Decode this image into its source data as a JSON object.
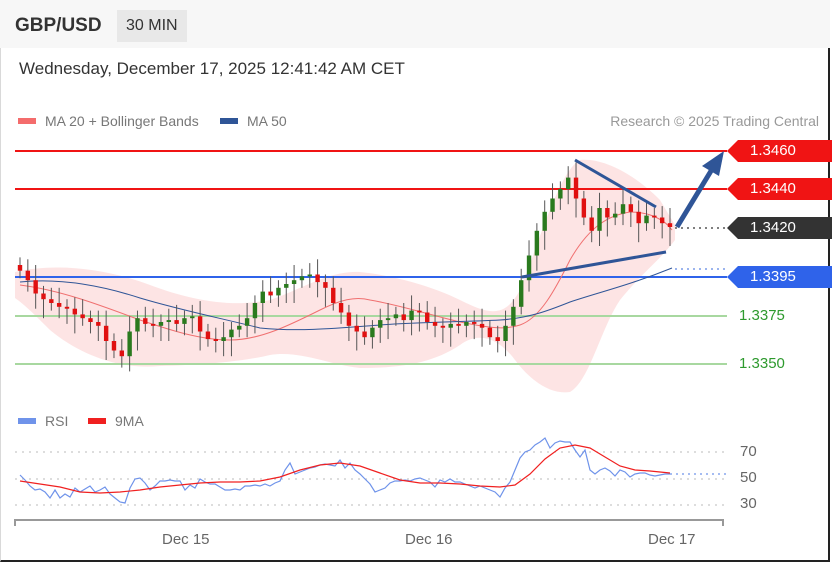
{
  "header": {
    "pair": "GBP/USD",
    "timeframe": "30 MIN",
    "datetime": "Wednesday, December 17, 2025 12:41:42 AM CET"
  },
  "legend": {
    "bollinger": "MA 20 + Bollinger Bands",
    "ma50": "MA 50",
    "credit": "Research © 2025 Trading Central"
  },
  "price_levels": {
    "r2": "1.3460",
    "r1": "1.3440",
    "current": "1.3420",
    "pivot": "1.3395",
    "s1": "1.3375",
    "s2": "1.3350"
  },
  "rsi_legend": {
    "rsi": "RSI",
    "ma": "9MA"
  },
  "rsi_axis": [
    "70",
    "50",
    "30"
  ],
  "x_axis": [
    "Dec 15",
    "Dec 16",
    "Dec 17"
  ],
  "colors": {
    "resistance": "#f01414",
    "current": "#333333",
    "pivot": "#2f63ea",
    "support": "#2e9a2e",
    "bull": "#2a7a1e",
    "bear": "#e01010",
    "ma50": "#2f5597",
    "bb": "#f7a6a6"
  },
  "chart_data": [
    {
      "type": "candlestick",
      "title": "GBP/USD 30 MIN",
      "subtitle": "Wednesday, December 17, 2025 12:41:42 AM CET",
      "legend": [
        "MA 20 + Bollinger Bands",
        "MA 50"
      ],
      "x_ticks": [
        "Dec 15",
        "Dec 16",
        "Dec 17"
      ],
      "horizontal_levels": [
        {
          "label": "1.3460",
          "role": "resistance 2",
          "color": "red"
        },
        {
          "label": "1.3440",
          "role": "resistance 1",
          "color": "red"
        },
        {
          "label": "1.3420",
          "role": "last price",
          "color": "dark"
        },
        {
          "label": "1.3395",
          "role": "pivot",
          "color": "blue"
        },
        {
          "label": "1.3375",
          "role": "support 1",
          "color": "green"
        },
        {
          "label": "1.3350",
          "role": "support 2",
          "color": "green"
        }
      ],
      "close_series_approx": [
        1.3397,
        1.3392,
        1.3385,
        1.3382,
        1.338,
        1.3378,
        1.3377,
        1.3374,
        1.3372,
        1.337,
        1.3368,
        1.336,
        1.3355,
        1.3352,
        1.3365,
        1.3372,
        1.3369,
        1.3368,
        1.337,
        1.3371,
        1.3369,
        1.3372,
        1.3373,
        1.3365,
        1.3361,
        1.336,
        1.3362,
        1.3366,
        1.3368,
        1.3372,
        1.338,
        1.3386,
        1.3384,
        1.3388,
        1.339,
        1.3392,
        1.3394,
        1.3395,
        1.3391,
        1.3388,
        1.338,
        1.3375,
        1.3368,
        1.3365,
        1.3362,
        1.3367,
        1.3371,
        1.3372,
        1.3374,
        1.3371,
        1.3376,
        1.3375,
        1.337,
        1.3368,
        1.3367,
        1.3369,
        1.3368,
        1.337,
        1.3369,
        1.3367,
        1.3362,
        1.336,
        1.3368,
        1.3378,
        1.3392,
        1.3405,
        1.3418,
        1.3428,
        1.3435,
        1.344,
        1.3446,
        1.3435,
        1.3425,
        1.3418,
        1.343,
        1.3425,
        1.3427,
        1.3432,
        1.3428,
        1.3422,
        1.3426,
        1.3425,
        1.3422,
        1.342
      ],
      "annotations": [
        "descending trendline from high",
        "ascending trendline support",
        "blue arrow projecting to 1.3460"
      ]
    },
    {
      "type": "line",
      "title": "RSI",
      "series": [
        {
          "name": "RSI",
          "values_approx": [
            57,
            52,
            49,
            48,
            46,
            44,
            42,
            45,
            47,
            43,
            46,
            49,
            47,
            44,
            41,
            40,
            52,
            56,
            50,
            49,
            52,
            55,
            54,
            53,
            48,
            50,
            54,
            53,
            49,
            47,
            48,
            52,
            51,
            50,
            51,
            58,
            64,
            58,
            59,
            61,
            62,
            63,
            60,
            61,
            63,
            56,
            52,
            48,
            45,
            42,
            44,
            46,
            48,
            49,
            50,
            52,
            50,
            47,
            46,
            44,
            42,
            40,
            38,
            36,
            44,
            52,
            62,
            68,
            72,
            76,
            78,
            72,
            74,
            75,
            76,
            66,
            68,
            70,
            56,
            58,
            57,
            59,
            55,
            52,
            54,
            51,
            53,
            53,
            52,
            53
          ]
        },
        {
          "name": "9MA",
          "values_approx": [
            50,
            49,
            48,
            47,
            46,
            45,
            44,
            44,
            44,
            45,
            45,
            46,
            46,
            46,
            45,
            44,
            45,
            47,
            48,
            49,
            50,
            51,
            51,
            52,
            52,
            52,
            52,
            52,
            52,
            51,
            51,
            51,
            51,
            51,
            51,
            52,
            54,
            56,
            57,
            58,
            59,
            60,
            61,
            61,
            61,
            60,
            58,
            56,
            54,
            52,
            50,
            49,
            48,
            48,
            48,
            49,
            49,
            49,
            48,
            47,
            46,
            46,
            45,
            45,
            45,
            46,
            50,
            56,
            62,
            68,
            72,
            74,
            74,
            74,
            73,
            72,
            70,
            67,
            64,
            61,
            59,
            58,
            57,
            56,
            55,
            54,
            54,
            53,
            53,
            53
          ]
        }
      ],
      "y_ticks": [
        70,
        50,
        30
      ],
      "ylim": [
        20,
        85
      ],
      "grid": "dotted at 30/50/70",
      "legend": [
        "RSI",
        "9MA"
      ]
    }
  ]
}
